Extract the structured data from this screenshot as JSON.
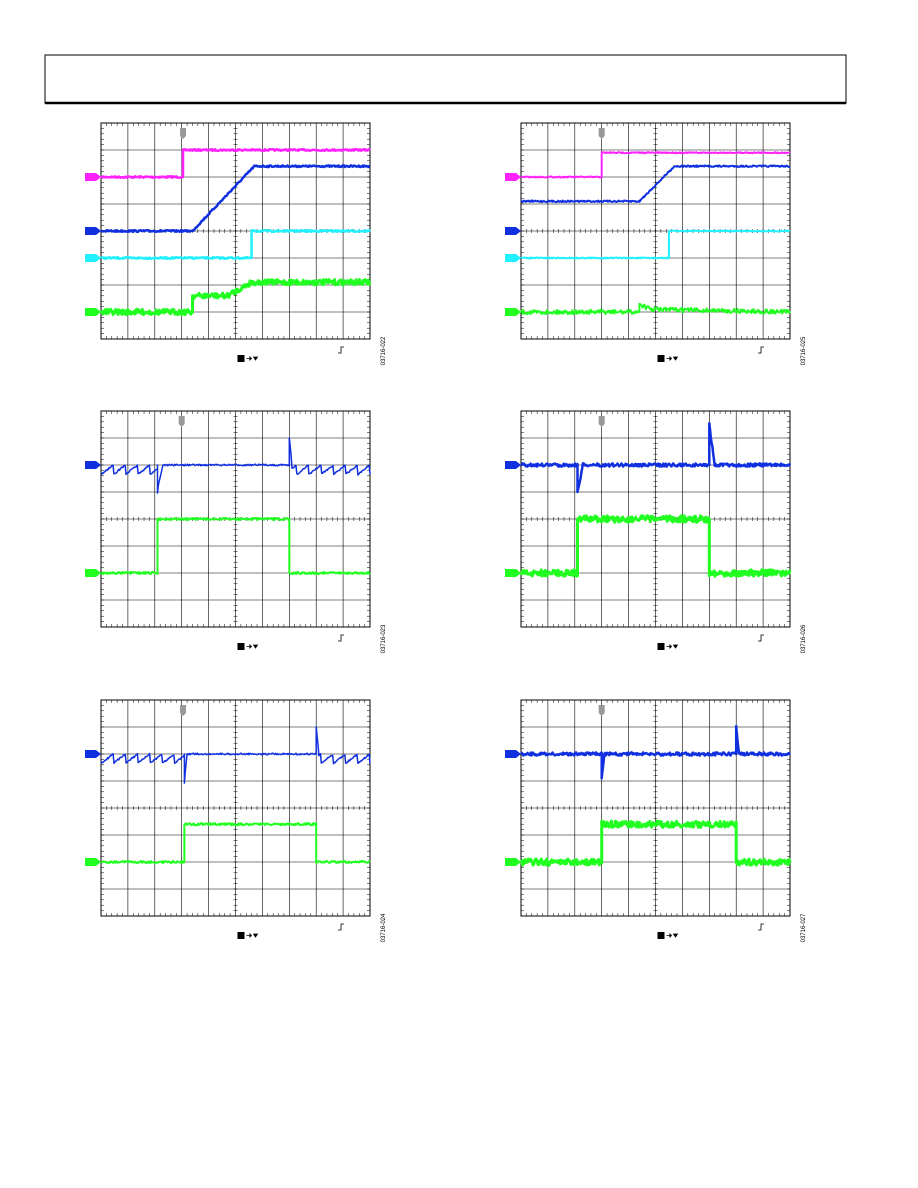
{
  "figures": [
    {
      "id": "03716-022"
    },
    {
      "id": "03716-025"
    },
    {
      "id": "03716-023"
    },
    {
      "id": "03716-026"
    },
    {
      "id": "03716-024"
    },
    {
      "id": "03716-027"
    }
  ]
}
